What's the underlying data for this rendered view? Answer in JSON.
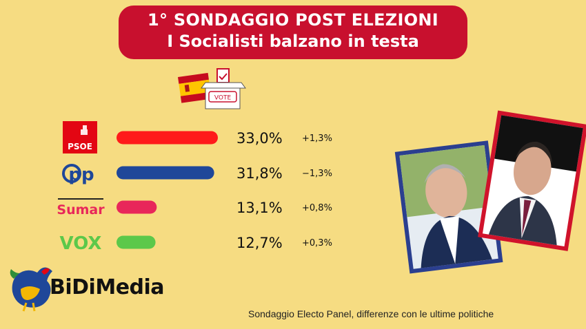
{
  "header": {
    "title": "1° SONDAGGIO POST ELEZIONI",
    "subtitle": "I Socialisti balzano in testa"
  },
  "ballot_box": {
    "label": "VOTE",
    "icon": "ballot-box-icon"
  },
  "flag": {
    "icon": "spain-flag-icon"
  },
  "chart_data": {
    "type": "bar",
    "orientation": "horizontal",
    "categories": [
      "PSOE",
      "pp",
      "Sumar",
      "VOX"
    ],
    "values": [
      33.0,
      31.8,
      13.1,
      12.7
    ],
    "value_labels": [
      "33,0%",
      "31,8%",
      "13,1%",
      "12,7%"
    ],
    "change_labels": [
      "+1,3%",
      "−1,3%",
      "+0,8%",
      "+0,3%"
    ],
    "colors": [
      "#ff1a1a",
      "#1f4799",
      "#e8275a",
      "#5cc84a"
    ],
    "xlim": [
      0,
      33.0
    ]
  },
  "logos": {
    "psoe": "PSOE",
    "pp": "pp",
    "sumar": "Sumar",
    "vox": "VOX"
  },
  "brand": {
    "name": "BiDiMedia",
    "icon": "rooster-icon"
  },
  "footer": {
    "note": "Sondaggio Electo Panel, differenze con le ultime politiche"
  },
  "photos": [
    {
      "name": "photo-left-candidate",
      "frame_color": "#2b3f8f"
    },
    {
      "name": "photo-right-candidate",
      "frame_color": "#d0132b"
    }
  ]
}
